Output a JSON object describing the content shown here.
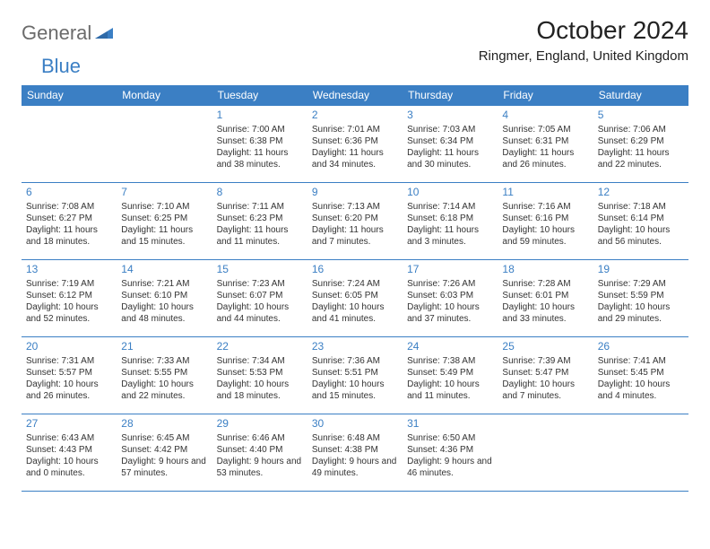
{
  "brand": {
    "general": "General",
    "blue": "Blue"
  },
  "title": "October 2024",
  "location": "Ringmer, England, United Kingdom",
  "colors": {
    "header_bg": "#3b7fc4",
    "header_text": "#ffffff",
    "day_num": "#3b7fc4",
    "border": "#3b7fc4",
    "body_text": "#333333",
    "logo_gray": "#6b6b6b",
    "logo_blue": "#3b7fc4",
    "page_bg": "#ffffff"
  },
  "typography": {
    "title_fontsize": 28,
    "location_fontsize": 15,
    "dayheader_fontsize": 12,
    "daynum_fontsize": 12,
    "cell_fontsize": 10
  },
  "days_of_week": [
    "Sunday",
    "Monday",
    "Tuesday",
    "Wednesday",
    "Thursday",
    "Friday",
    "Saturday"
  ],
  "weeks": [
    [
      null,
      null,
      {
        "n": "1",
        "sunrise": "7:00 AM",
        "sunset": "6:38 PM",
        "daylight": "11 hours and 38 minutes."
      },
      {
        "n": "2",
        "sunrise": "7:01 AM",
        "sunset": "6:36 PM",
        "daylight": "11 hours and 34 minutes."
      },
      {
        "n": "3",
        "sunrise": "7:03 AM",
        "sunset": "6:34 PM",
        "daylight": "11 hours and 30 minutes."
      },
      {
        "n": "4",
        "sunrise": "7:05 AM",
        "sunset": "6:31 PM",
        "daylight": "11 hours and 26 minutes."
      },
      {
        "n": "5",
        "sunrise": "7:06 AM",
        "sunset": "6:29 PM",
        "daylight": "11 hours and 22 minutes."
      }
    ],
    [
      {
        "n": "6",
        "sunrise": "7:08 AM",
        "sunset": "6:27 PM",
        "daylight": "11 hours and 18 minutes."
      },
      {
        "n": "7",
        "sunrise": "7:10 AM",
        "sunset": "6:25 PM",
        "daylight": "11 hours and 15 minutes."
      },
      {
        "n": "8",
        "sunrise": "7:11 AM",
        "sunset": "6:23 PM",
        "daylight": "11 hours and 11 minutes."
      },
      {
        "n": "9",
        "sunrise": "7:13 AM",
        "sunset": "6:20 PM",
        "daylight": "11 hours and 7 minutes."
      },
      {
        "n": "10",
        "sunrise": "7:14 AM",
        "sunset": "6:18 PM",
        "daylight": "11 hours and 3 minutes."
      },
      {
        "n": "11",
        "sunrise": "7:16 AM",
        "sunset": "6:16 PM",
        "daylight": "10 hours and 59 minutes."
      },
      {
        "n": "12",
        "sunrise": "7:18 AM",
        "sunset": "6:14 PM",
        "daylight": "10 hours and 56 minutes."
      }
    ],
    [
      {
        "n": "13",
        "sunrise": "7:19 AM",
        "sunset": "6:12 PM",
        "daylight": "10 hours and 52 minutes."
      },
      {
        "n": "14",
        "sunrise": "7:21 AM",
        "sunset": "6:10 PM",
        "daylight": "10 hours and 48 minutes."
      },
      {
        "n": "15",
        "sunrise": "7:23 AM",
        "sunset": "6:07 PM",
        "daylight": "10 hours and 44 minutes."
      },
      {
        "n": "16",
        "sunrise": "7:24 AM",
        "sunset": "6:05 PM",
        "daylight": "10 hours and 41 minutes."
      },
      {
        "n": "17",
        "sunrise": "7:26 AM",
        "sunset": "6:03 PM",
        "daylight": "10 hours and 37 minutes."
      },
      {
        "n": "18",
        "sunrise": "7:28 AM",
        "sunset": "6:01 PM",
        "daylight": "10 hours and 33 minutes."
      },
      {
        "n": "19",
        "sunrise": "7:29 AM",
        "sunset": "5:59 PM",
        "daylight": "10 hours and 29 minutes."
      }
    ],
    [
      {
        "n": "20",
        "sunrise": "7:31 AM",
        "sunset": "5:57 PM",
        "daylight": "10 hours and 26 minutes."
      },
      {
        "n": "21",
        "sunrise": "7:33 AM",
        "sunset": "5:55 PM",
        "daylight": "10 hours and 22 minutes."
      },
      {
        "n": "22",
        "sunrise": "7:34 AM",
        "sunset": "5:53 PM",
        "daylight": "10 hours and 18 minutes."
      },
      {
        "n": "23",
        "sunrise": "7:36 AM",
        "sunset": "5:51 PM",
        "daylight": "10 hours and 15 minutes."
      },
      {
        "n": "24",
        "sunrise": "7:38 AM",
        "sunset": "5:49 PM",
        "daylight": "10 hours and 11 minutes."
      },
      {
        "n": "25",
        "sunrise": "7:39 AM",
        "sunset": "5:47 PM",
        "daylight": "10 hours and 7 minutes."
      },
      {
        "n": "26",
        "sunrise": "7:41 AM",
        "sunset": "5:45 PM",
        "daylight": "10 hours and 4 minutes."
      }
    ],
    [
      {
        "n": "27",
        "sunrise": "6:43 AM",
        "sunset": "4:43 PM",
        "daylight": "10 hours and 0 minutes."
      },
      {
        "n": "28",
        "sunrise": "6:45 AM",
        "sunset": "4:42 PM",
        "daylight": "9 hours and 57 minutes."
      },
      {
        "n": "29",
        "sunrise": "6:46 AM",
        "sunset": "4:40 PM",
        "daylight": "9 hours and 53 minutes."
      },
      {
        "n": "30",
        "sunrise": "6:48 AM",
        "sunset": "4:38 PM",
        "daylight": "9 hours and 49 minutes."
      },
      {
        "n": "31",
        "sunrise": "6:50 AM",
        "sunset": "4:36 PM",
        "daylight": "9 hours and 46 minutes."
      },
      null,
      null
    ]
  ],
  "labels": {
    "sunrise": "Sunrise: ",
    "sunset": "Sunset: ",
    "daylight": "Daylight: "
  }
}
